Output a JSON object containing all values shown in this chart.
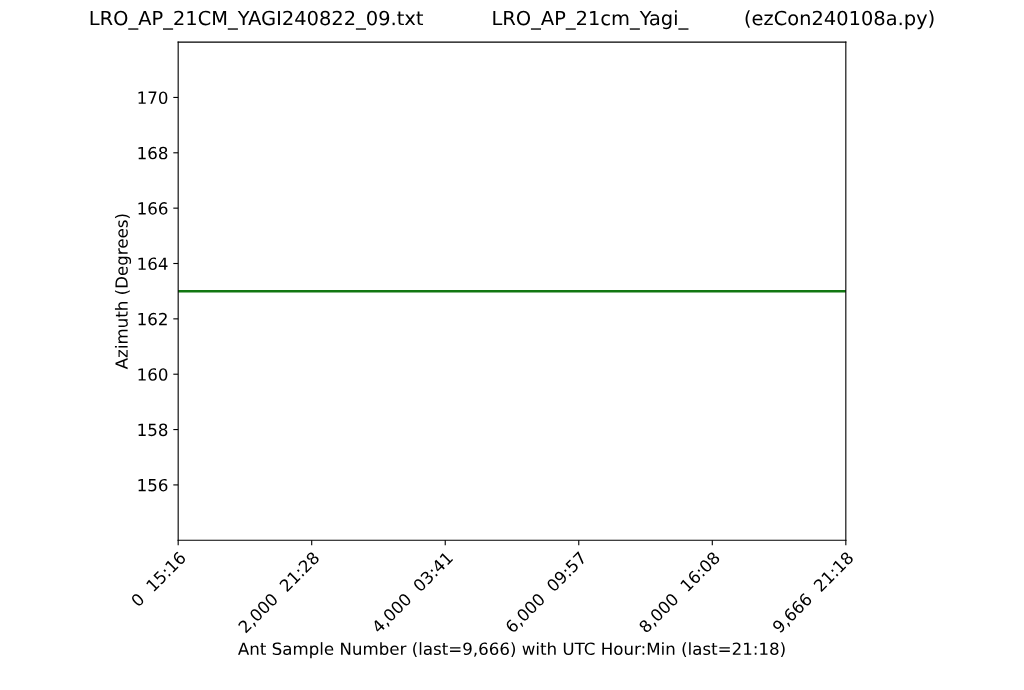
{
  "chart_data": {
    "type": "line",
    "title": "LRO_AP_21CM_YAGI240822_09.txt           LRO_AP_21cm_Yagi_         (ezCon240108a.py)",
    "xlabel": "Ant Sample Number (last=9,666) with UTC Hour:Min (last=21:18)",
    "ylabel": "Azimuth (Degrees)",
    "categories": [
      "0  15:16",
      "2,000  21:28",
      "4,000  03:41",
      "6,000  09:57",
      "8,000  16:08",
      "9,666  21:18"
    ],
    "series": [
      {
        "color": "#117711",
        "values": [
          163,
          163,
          163,
          163,
          163,
          163
        ]
      }
    ],
    "ylim": [
      154,
      172
    ],
    "yticks": [
      156,
      158,
      160,
      162,
      164,
      166,
      168,
      170
    ]
  }
}
